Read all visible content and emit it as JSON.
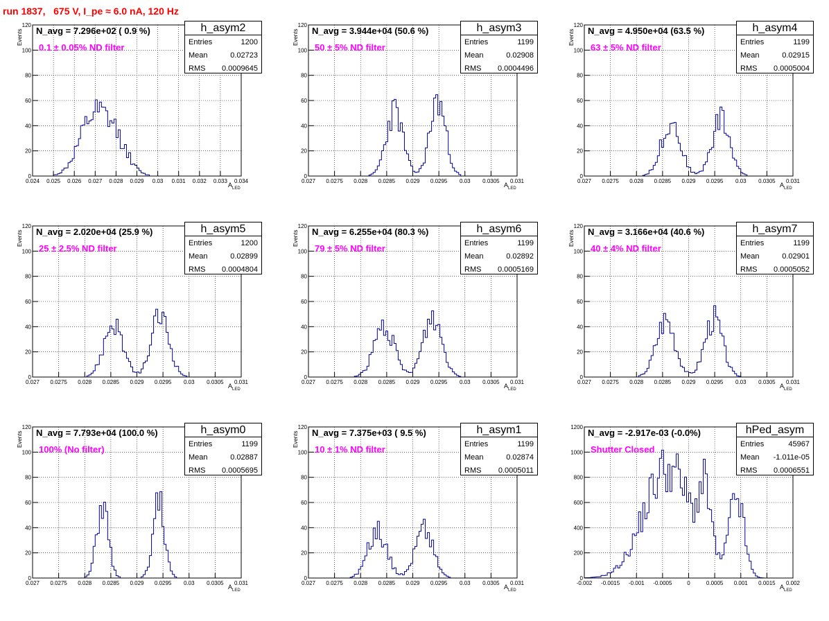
{
  "header": {
    "title": "run 1837,   675 V, I_pe ≈ 6.0 nA, 120 Hz"
  },
  "colors": {
    "title": "#ff0000",
    "filter_text": "#ff00ff",
    "histogram": "#000099",
    "grid": "#000000"
  },
  "chart_data": [
    {
      "type": "histogram",
      "name": "h_asym2",
      "n_avg": "N_avg = 7.296e+02 ( 0.9 %)",
      "filter": "0.1 ± 0.05% ND filter",
      "entries_label": "Entries",
      "entries": "1200",
      "mean_label": "Mean",
      "mean": "0.02723",
      "rms_label": "RMS",
      "rms": "0.0009645",
      "xlabel": "A",
      "xlabel_sub": "LED",
      "ylabel": "Events",
      "xlim": [
        0.024,
        0.034
      ],
      "ylim": [
        0,
        120
      ],
      "xticks": [
        0.024,
        0.025,
        0.026,
        0.027,
        0.028,
        0.029,
        0.03,
        0.031,
        0.032,
        0.033,
        0.034
      ],
      "xtick_labels": [
        "0.024",
        "0.025",
        "0.026",
        "0.027",
        "0.028",
        "0.029",
        "0.03",
        "0.031",
        "0.032",
        "0.033",
        "0.034"
      ],
      "yticks": [
        0,
        20,
        40,
        60,
        80,
        100,
        120
      ],
      "ytick_labels": [
        "0",
        "20",
        "40",
        "60",
        "80",
        "100",
        "120"
      ],
      "peaks": [
        {
          "mu": 0.02685,
          "sigma": 0.00065,
          "amp": 42
        },
        {
          "mu": 0.02795,
          "sigma": 0.0006,
          "amp": 28
        }
      ],
      "seed": 12
    },
    {
      "type": "histogram",
      "name": "h_asym3",
      "n_avg": "N_avg = 3.944e+04 (50.6 %)",
      "filter": "50 ± 5% ND filter",
      "entries_label": "Entries",
      "entries": "1199",
      "mean_label": "Mean",
      "mean": "0.02908",
      "rms_label": "RMS",
      "rms": "0.0004496",
      "xlabel": "A",
      "xlabel_sub": "LED",
      "ylabel": "Events",
      "xlim": [
        0.027,
        0.031
      ],
      "ylim": [
        0,
        120
      ],
      "xticks": [
        0.027,
        0.0275,
        0.028,
        0.0285,
        0.029,
        0.0295,
        0.03,
        0.0305,
        0.031
      ],
      "xtick_labels": [
        "0.027",
        "0.0275",
        "0.028",
        "0.0285",
        "0.029",
        "0.0295",
        "0.03",
        "0.0305",
        "0.031"
      ],
      "yticks": [
        0,
        20,
        40,
        60,
        80,
        100,
        120
      ],
      "ytick_labels": [
        "0",
        "20",
        "40",
        "60",
        "80",
        "100",
        "120"
      ],
      "peaks": [
        {
          "mu": 0.02865,
          "sigma": 0.00016,
          "amp": 52
        },
        {
          "mu": 0.02948,
          "sigma": 0.00015,
          "amp": 60
        }
      ],
      "seed": 23
    },
    {
      "type": "histogram",
      "name": "h_asym4",
      "n_avg": "N_avg = 4.950e+04 (63.5 %)",
      "filter": "63 ± 5% ND filter",
      "entries_label": "Entries",
      "entries": "1199",
      "mean_label": "Mean",
      "mean": "0.02915",
      "rms_label": "RMS",
      "rms": "0.0005004",
      "xlabel": "A",
      "xlabel_sub": "LED",
      "ylabel": "Events",
      "xlim": [
        0.027,
        0.031
      ],
      "ylim": [
        0,
        120
      ],
      "xticks": [
        0.027,
        0.0275,
        0.028,
        0.0285,
        0.029,
        0.0295,
        0.03,
        0.0305,
        0.031
      ],
      "xtick_labels": [
        "0.027",
        "0.0275",
        "0.028",
        "0.0285",
        "0.029",
        "0.0295",
        "0.03",
        "0.0305",
        "0.031"
      ],
      "yticks": [
        0,
        20,
        40,
        60,
        80,
        100,
        120
      ],
      "ytick_labels": [
        "0",
        "20",
        "40",
        "60",
        "80",
        "100",
        "120"
      ],
      "peaks": [
        {
          "mu": 0.02866,
          "sigma": 0.00018,
          "amp": 44
        },
        {
          "mu": 0.02962,
          "sigma": 0.00017,
          "amp": 46
        }
      ],
      "seed": 34
    },
    {
      "type": "histogram",
      "name": "h_asym5",
      "n_avg": "N_avg = 2.020e+04 (25.9 %)",
      "filter": "25 ± 2.5% ND filter",
      "entries_label": "Entries",
      "entries": "1200",
      "mean_label": "Mean",
      "mean": "0.02899",
      "rms_label": "RMS",
      "rms": "0.0004804",
      "xlabel": "A",
      "xlabel_sub": "LED",
      "ylabel": "Events",
      "xlim": [
        0.027,
        0.031
      ],
      "ylim": [
        0,
        120
      ],
      "xticks": [
        0.027,
        0.0275,
        0.028,
        0.0285,
        0.029,
        0.0295,
        0.03,
        0.0305,
        0.031
      ],
      "xtick_labels": [
        "0.027",
        "0.0275",
        "0.028",
        "0.0285",
        "0.029",
        "0.0295",
        "0.03",
        "0.0305",
        "0.031"
      ],
      "yticks": [
        0,
        20,
        40,
        60,
        80,
        100,
        120
      ],
      "ytick_labels": [
        "0",
        "20",
        "40",
        "60",
        "80",
        "100",
        "120"
      ],
      "peaks": [
        {
          "mu": 0.02855,
          "sigma": 0.00018,
          "amp": 43
        },
        {
          "mu": 0.02945,
          "sigma": 0.00017,
          "amp": 48
        }
      ],
      "seed": 45
    },
    {
      "type": "histogram",
      "name": "h_asym6",
      "n_avg": "N_avg = 6.255e+04 (80.3 %)",
      "filter": "79 ± 5% ND filter",
      "entries_label": "Entries",
      "entries": "1199",
      "mean_label": "Mean",
      "mean": "0.02892",
      "rms_label": "RMS",
      "rms": "0.0005169",
      "xlabel": "A",
      "xlabel_sub": "LED",
      "ylabel": "Events",
      "xlim": [
        0.027,
        0.031
      ],
      "ylim": [
        0,
        120
      ],
      "xticks": [
        0.027,
        0.0275,
        0.028,
        0.0285,
        0.029,
        0.0295,
        0.03,
        0.0305,
        0.031
      ],
      "xtick_labels": [
        "0.027",
        "0.0275",
        "0.028",
        "0.0285",
        "0.029",
        "0.0295",
        "0.03",
        "0.0305",
        "0.031"
      ],
      "yticks": [
        0,
        20,
        40,
        60,
        80,
        100,
        120
      ],
      "ytick_labels": [
        "0",
        "20",
        "40",
        "60",
        "80",
        "100",
        "120"
      ],
      "peaks": [
        {
          "mu": 0.02845,
          "sigma": 0.00019,
          "amp": 40
        },
        {
          "mu": 0.02938,
          "sigma": 0.00018,
          "amp": 47
        }
      ],
      "seed": 56
    },
    {
      "type": "histogram",
      "name": "h_asym7",
      "n_avg": "N_avg = 3.166e+04 (40.6 %)",
      "filter": "40 ± 4% ND filter",
      "entries_label": "Entries",
      "entries": "1199",
      "mean_label": "Mean",
      "mean": "0.02901",
      "rms_label": "RMS",
      "rms": "0.0005052",
      "xlabel": "A",
      "xlabel_sub": "LED",
      "ylabel": "Events",
      "xlim": [
        0.027,
        0.031
      ],
      "ylim": [
        0,
        120
      ],
      "xticks": [
        0.027,
        0.0275,
        0.028,
        0.0285,
        0.029,
        0.0295,
        0.03,
        0.0305,
        0.031
      ],
      "xtick_labels": [
        "0.027",
        "0.0275",
        "0.028",
        "0.0285",
        "0.029",
        "0.0295",
        "0.03",
        "0.0305",
        "0.031"
      ],
      "yticks": [
        0,
        20,
        40,
        60,
        80,
        100,
        120
      ],
      "ytick_labels": [
        "0",
        "20",
        "40",
        "60",
        "80",
        "100",
        "120"
      ],
      "peaks": [
        {
          "mu": 0.02856,
          "sigma": 0.00018,
          "amp": 46
        },
        {
          "mu": 0.02948,
          "sigma": 0.00017,
          "amp": 47
        }
      ],
      "seed": 67
    },
    {
      "type": "histogram",
      "name": "h_asym0",
      "n_avg": "N_avg = 7.793e+04 (100.0 %)",
      "filter": "100% (No filter)",
      "entries_label": "Entries",
      "entries": "1199",
      "mean_label": "Mean",
      "mean": "0.02887",
      "rms_label": "RMS",
      "rms": "0.0005695",
      "xlabel": "A",
      "xlabel_sub": "LED",
      "ylabel": "Events",
      "xlim": [
        0.027,
        0.031
      ],
      "ylim": [
        0,
        120
      ],
      "xticks": [
        0.027,
        0.0275,
        0.028,
        0.0285,
        0.029,
        0.0295,
        0.03,
        0.0305,
        0.031
      ],
      "xtick_labels": [
        "0.027",
        "0.0275",
        "0.028",
        "0.0285",
        "0.029",
        "0.0295",
        "0.03",
        "0.0305",
        "0.031"
      ],
      "yticks": [
        0,
        20,
        40,
        60,
        80,
        100,
        120
      ],
      "ytick_labels": [
        "0",
        "20",
        "40",
        "60",
        "80",
        "100",
        "120"
      ],
      "peaks": [
        {
          "mu": 0.02834,
          "sigma": 0.00011,
          "amp": 58
        },
        {
          "mu": 0.02942,
          "sigma": 0.00011,
          "amp": 60
        }
      ],
      "seed": 78
    },
    {
      "type": "histogram",
      "name": "h_asym1",
      "n_avg": "N_avg = 7.375e+03 ( 9.5 %)",
      "filter": "10 ± 1% ND filter",
      "entries_label": "Entries",
      "entries": "1199",
      "mean_label": "Mean",
      "mean": "0.02874",
      "rms_label": "RMS",
      "rms": "0.0005011",
      "xlabel": "A",
      "xlabel_sub": "LED",
      "ylabel": "Events",
      "xlim": [
        0.027,
        0.031
      ],
      "ylim": [
        0,
        120
      ],
      "xticks": [
        0.027,
        0.0275,
        0.028,
        0.0285,
        0.029,
        0.0295,
        0.03,
        0.0305,
        0.031
      ],
      "xtick_labels": [
        "0.027",
        "0.0275",
        "0.028",
        "0.0285",
        "0.029",
        "0.0295",
        "0.03",
        "0.0305",
        "0.031"
      ],
      "yticks": [
        0,
        20,
        40,
        60,
        80,
        100,
        120
      ],
      "ytick_labels": [
        "0",
        "20",
        "40",
        "60",
        "80",
        "100",
        "120"
      ],
      "peaks": [
        {
          "mu": 0.02832,
          "sigma": 0.00018,
          "amp": 38
        },
        {
          "mu": 0.02922,
          "sigma": 0.00017,
          "amp": 40
        }
      ],
      "seed": 89
    },
    {
      "type": "histogram",
      "name": "hPed_asym",
      "n_avg": "N_avg = -2.917e-03 (-0.0%)",
      "filter": "Shutter Closed",
      "entries_label": "Entries",
      "entries": "45967",
      "mean_label": "Mean",
      "mean": "-1.011e-05",
      "rms_label": "RMS",
      "rms": "0.0006551",
      "xlabel": "A",
      "xlabel_sub": "LED",
      "ylabel": "",
      "xlim": [
        -0.002,
        0.002
      ],
      "ylim": [
        0,
        1200
      ],
      "xticks": [
        -0.002,
        -0.0015,
        -0.001,
        -0.0005,
        0,
        0.0005,
        0.001,
        0.0015,
        0.002
      ],
      "xtick_labels": [
        "-0.002",
        "-0.0015",
        "-0.001",
        "-0.0005",
        "0",
        "0.0005",
        "0.001",
        "0.0015",
        "0.002"
      ],
      "yticks": [
        0,
        200,
        400,
        600,
        800,
        1000,
        1200
      ],
      "ytick_labels": [
        "0",
        "200",
        "400",
        "600",
        "800",
        "1000",
        "1200"
      ],
      "peaks": [
        {
          "mu": -0.0004,
          "sigma": 0.00045,
          "amp": 880
        },
        {
          "mu": 0.00032,
          "sigma": 0.00012,
          "amp": 500
        },
        {
          "mu": 0.00092,
          "sigma": 0.00014,
          "amp": 640
        }
      ],
      "seed": 91
    }
  ]
}
